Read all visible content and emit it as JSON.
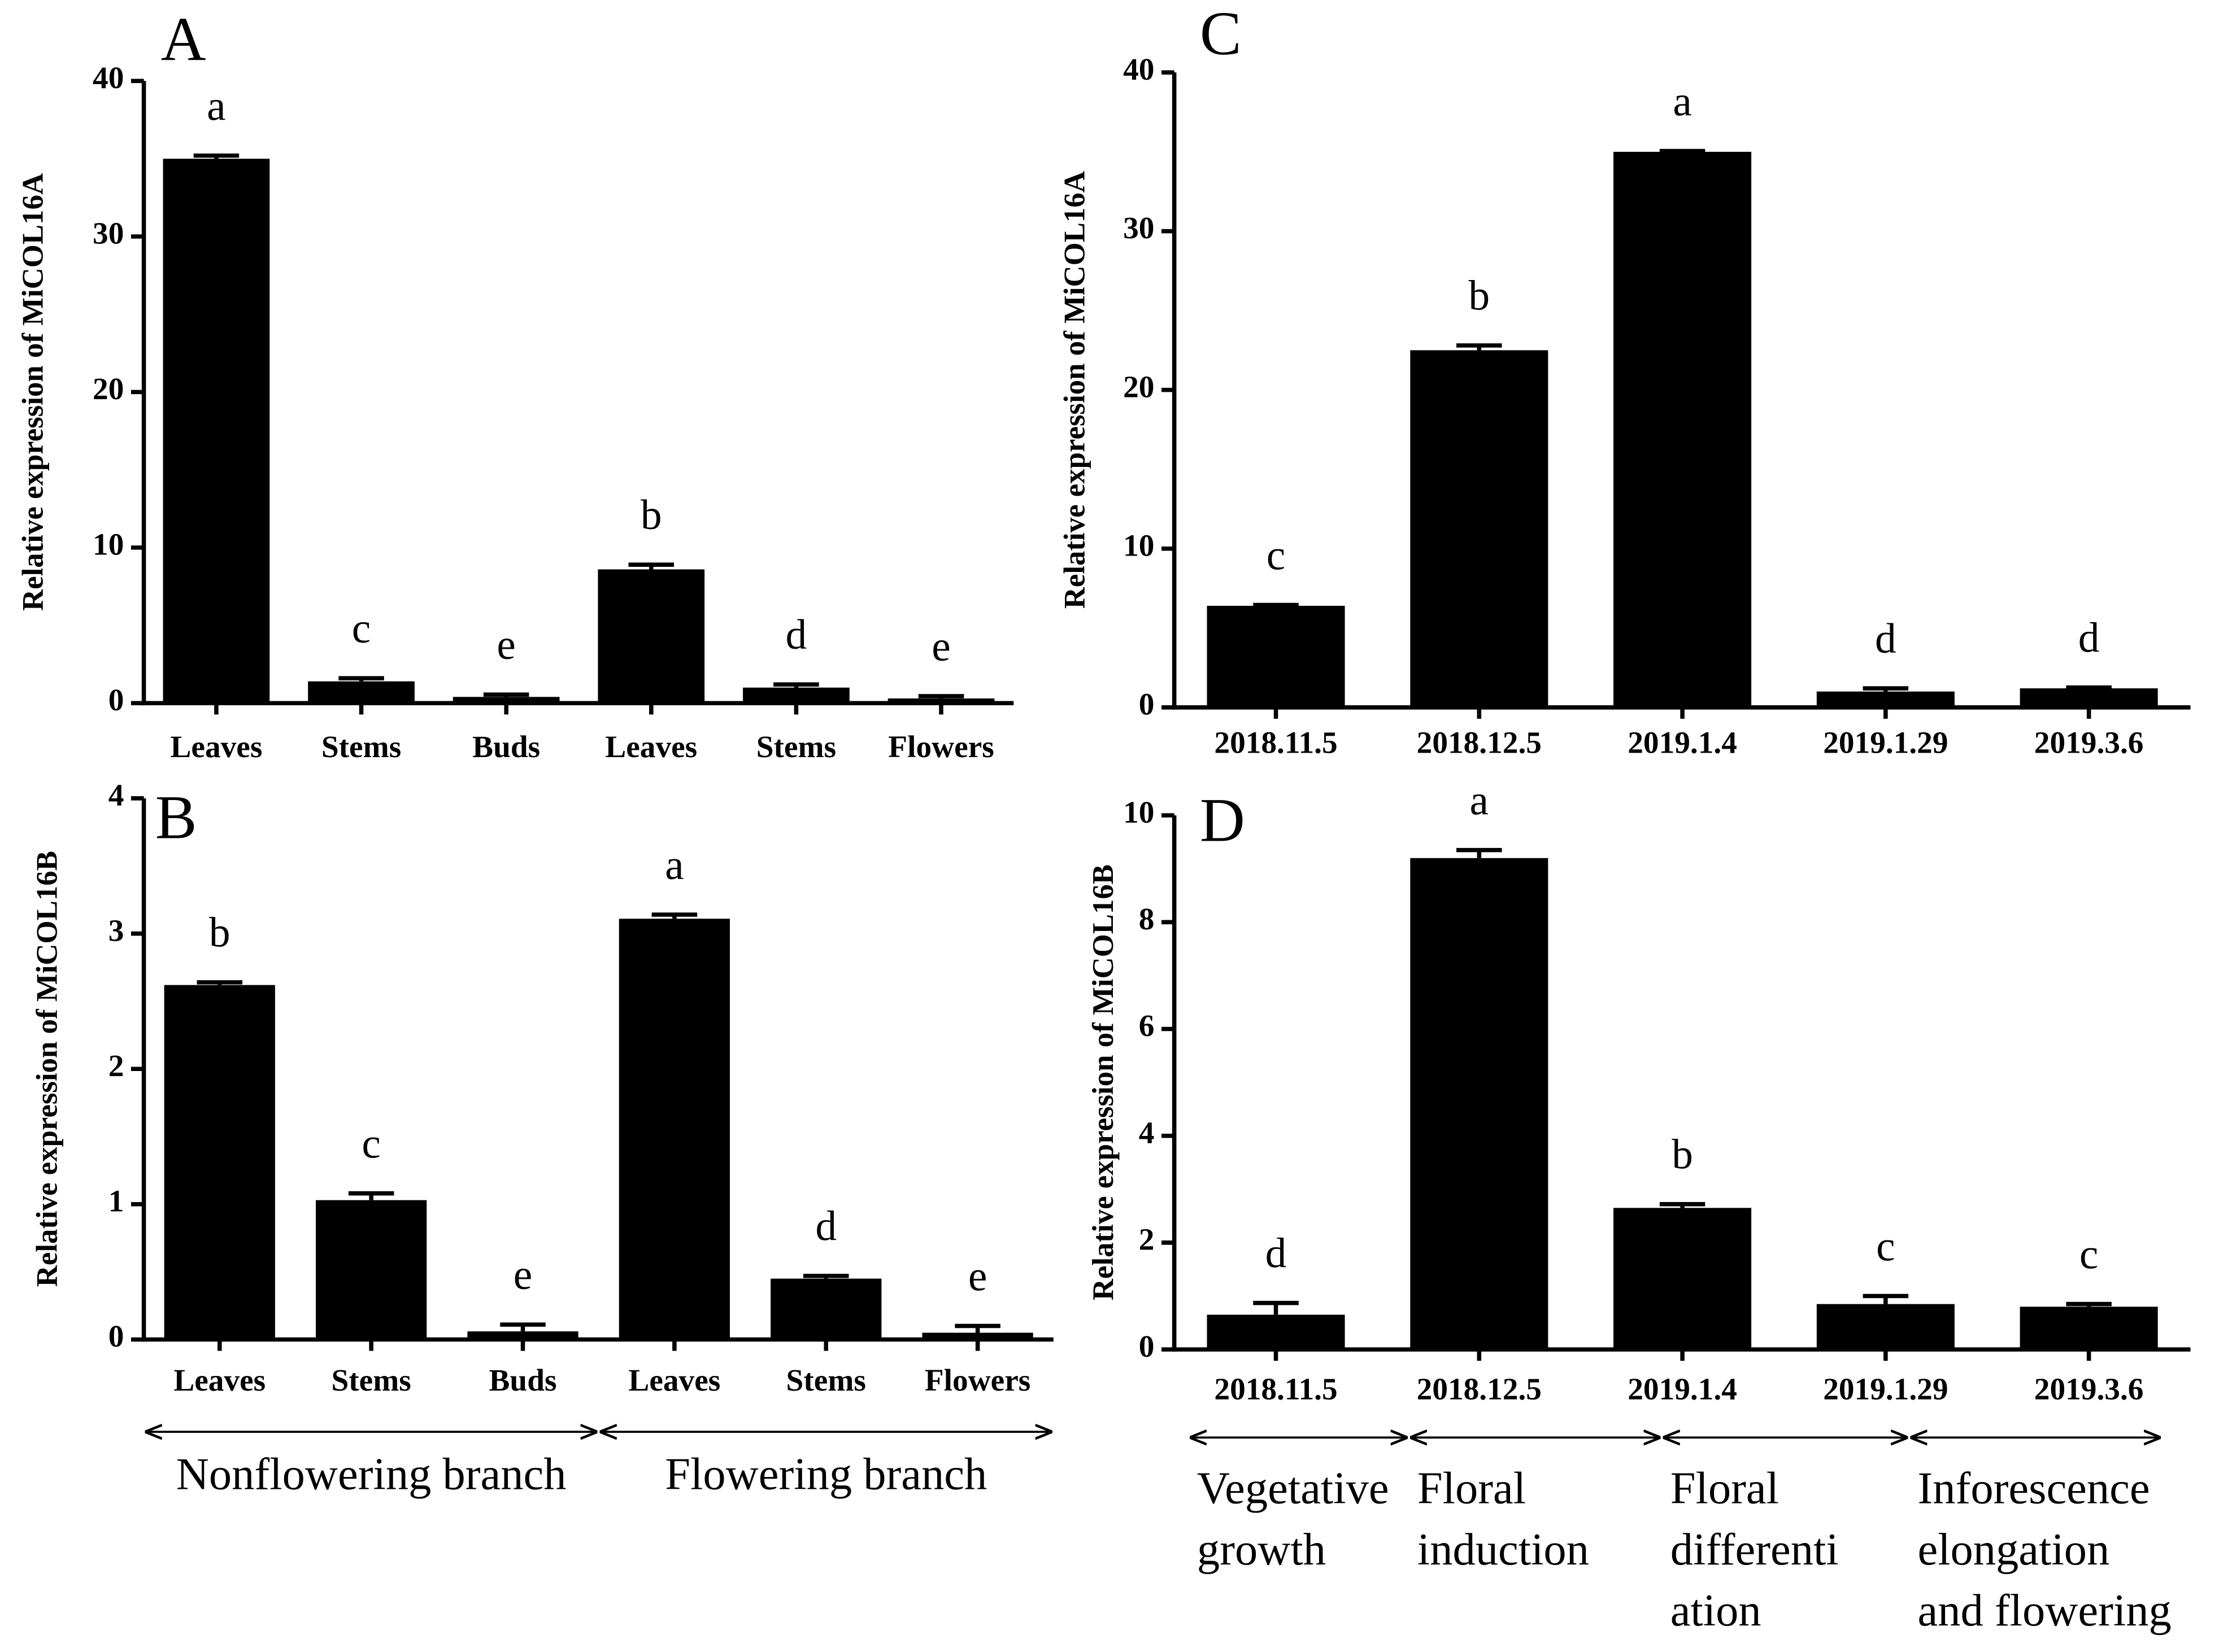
{
  "chart_data": [
    {
      "type": "bar",
      "panel": "A",
      "ylabel": "Relative expression of MiCOL16A",
      "categories": [
        "Leaves",
        "Stems",
        "Buds",
        "Leaves",
        "Stems",
        "Flowers"
      ],
      "values": [
        35,
        1.4,
        0.4,
        8.6,
        1.0,
        0.3
      ],
      "errors": [
        0.2,
        0.2,
        0.15,
        0.3,
        0.2,
        0.15
      ],
      "letters": [
        "a",
        "c",
        "e",
        "b",
        "d",
        "e"
      ],
      "color": "#000000",
      "ylim": [
        0,
        40
      ],
      "yticks": [
        0,
        10,
        20,
        30,
        40
      ]
    },
    {
      "type": "bar",
      "panel": "B",
      "ylabel": "Relative expression of MiCOL16B",
      "categories": [
        "Leaves",
        "Stems",
        "Buds",
        "Leaves",
        "Stems",
        "Flowers"
      ],
      "values": [
        2.62,
        1.03,
        0.06,
        3.11,
        0.45,
        0.05
      ],
      "errors": [
        0.02,
        0.05,
        0.05,
        0.03,
        0.02,
        0.05
      ],
      "letters": [
        "b",
        "c",
        "e",
        "a",
        "d",
        "e"
      ],
      "color": "#000000",
      "ylim": [
        0,
        4
      ],
      "yticks": [
        0,
        1,
        2,
        3,
        4
      ],
      "period_labels": [
        [
          "Nonflowering branch"
        ],
        [
          "Flowering branch"
        ]
      ]
    },
    {
      "type": "bar",
      "panel": "C",
      "ylabel": "Relative expression of MiCOL16A",
      "categories": [
        "2018.11.5",
        "2018.12.5",
        "2019.1.4",
        "2019.1.29",
        "2019.3.6"
      ],
      "values": [
        6.4,
        22.5,
        35,
        1.0,
        1.2
      ],
      "errors": [
        0.05,
        0.3,
        0.05,
        0.2,
        0.05
      ],
      "letters": [
        "c",
        "b",
        "a",
        "d",
        "d"
      ],
      "color": "#000000",
      "ylim": [
        0,
        40
      ],
      "yticks": [
        0,
        10,
        20,
        30,
        40
      ]
    },
    {
      "type": "bar",
      "panel": "D",
      "ylabel": "Relative expression of MiCOL16B",
      "categories": [
        "2018.11.5",
        "2018.12.5",
        "2019.1.4",
        "2019.1.29",
        "2019.3.6"
      ],
      "values": [
        0.65,
        9.2,
        2.65,
        0.85,
        0.8
      ],
      "errors": [
        0.22,
        0.15,
        0.07,
        0.15,
        0.05
      ],
      "letters": [
        "d",
        "a",
        "b",
        "c",
        "c"
      ],
      "color": "#000000",
      "ylim": [
        0,
        10
      ],
      "yticks": [
        0,
        2,
        4,
        6,
        8,
        10
      ],
      "period_labels": [
        [
          "Vegetative",
          "growth"
        ],
        [
          "Floral",
          "induction"
        ],
        [
          "Floral",
          "differenti",
          "ation"
        ],
        [
          "Inforescence",
          "elongation",
          "and flowering"
        ]
      ]
    }
  ]
}
